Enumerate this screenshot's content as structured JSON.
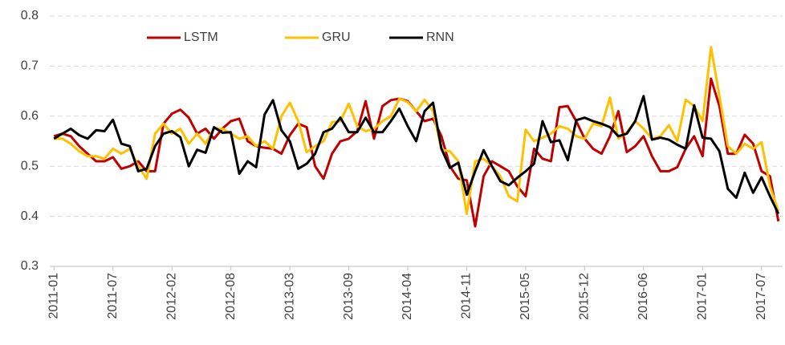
{
  "chart_data": {
    "type": "line",
    "categories": [
      "2011-01",
      null,
      null,
      null,
      null,
      null,
      null,
      "2011-07",
      null,
      null,
      null,
      null,
      null,
      null,
      "2012-02",
      null,
      null,
      null,
      null,
      null,
      null,
      "2012-08",
      null,
      null,
      null,
      null,
      null,
      null,
      "2013-03",
      null,
      null,
      null,
      null,
      null,
      null,
      "2013-09",
      null,
      null,
      null,
      null,
      null,
      null,
      "2014-04",
      null,
      null,
      null,
      null,
      null,
      null,
      "2014-11",
      null,
      null,
      null,
      null,
      null,
      null,
      "2015-05",
      null,
      null,
      null,
      null,
      null,
      null,
      "2015-12",
      null,
      null,
      null,
      null,
      null,
      null,
      "2016-06",
      null,
      null,
      null,
      null,
      null,
      null,
      "2017-01",
      null,
      null,
      null,
      null,
      null,
      null,
      "2017-07",
      null,
      null
    ],
    "series": [
      {
        "name": "LSTM",
        "color": "#c00000",
        "values": [
          0.56,
          0.565,
          0.56,
          0.54,
          0.525,
          0.51,
          0.51,
          0.518,
          0.495,
          0.5,
          0.51,
          0.49,
          0.49,
          0.585,
          0.605,
          0.613,
          0.597,
          0.565,
          0.575,
          0.555,
          0.575,
          0.59,
          0.595,
          0.55,
          0.54,
          0.537,
          0.535,
          0.525,
          0.562,
          0.585,
          0.578,
          0.5,
          0.475,
          0.525,
          0.55,
          0.555,
          0.57,
          0.63,
          0.555,
          0.62,
          0.632,
          0.635,
          0.63,
          0.61,
          0.59,
          0.595,
          0.56,
          0.5,
          0.475,
          0.472,
          0.38,
          0.48,
          0.51,
          0.5,
          0.49,
          0.46,
          0.44,
          0.535,
          0.515,
          0.51,
          0.618,
          0.62,
          0.59,
          0.555,
          0.535,
          0.525,
          0.56,
          0.61,
          0.528,
          0.54,
          0.56,
          0.52,
          0.49,
          0.49,
          0.498,
          0.535,
          0.56,
          0.52,
          0.675,
          0.62,
          0.525,
          0.525,
          0.563,
          0.545,
          0.49,
          0.48,
          0.39
        ]
      },
      {
        "name": "GRU",
        "color": "#ffc000",
        "values": [
          0.555,
          0.555,
          0.545,
          0.53,
          0.52,
          0.52,
          0.515,
          0.535,
          0.525,
          0.535,
          0.5,
          0.475,
          0.565,
          0.585,
          0.565,
          0.575,
          0.545,
          0.565,
          0.545,
          0.575,
          0.575,
          0.565,
          0.555,
          0.56,
          0.54,
          0.55,
          0.535,
          0.6,
          0.627,
          0.59,
          0.528,
          0.54,
          0.55,
          0.588,
          0.59,
          0.625,
          0.58,
          0.57,
          0.575,
          0.59,
          0.6,
          0.635,
          0.628,
          0.61,
          0.633,
          0.61,
          0.533,
          0.53,
          0.51,
          0.405,
          0.51,
          0.515,
          0.5,
          0.48,
          0.44,
          0.43,
          0.573,
          0.55,
          0.557,
          0.565,
          0.58,
          0.575,
          0.56,
          0.555,
          0.585,
          0.58,
          0.637,
          0.555,
          0.568,
          0.59,
          0.575,
          0.555,
          0.56,
          0.582,
          0.55,
          0.633,
          0.62,
          0.59,
          0.738,
          0.64,
          0.54,
          0.525,
          0.545,
          0.535,
          0.548,
          0.46,
          0.41
        ]
      },
      {
        "name": "RNN",
        "color": "#000000",
        "values": [
          0.555,
          0.565,
          0.575,
          0.562,
          0.555,
          0.572,
          0.57,
          0.593,
          0.545,
          0.54,
          0.49,
          0.495,
          0.54,
          0.565,
          0.57,
          0.558,
          0.5,
          0.533,
          0.527,
          0.578,
          0.567,
          0.568,
          0.485,
          0.51,
          0.498,
          0.603,
          0.632,
          0.572,
          0.55,
          0.495,
          0.505,
          0.525,
          0.568,
          0.575,
          0.597,
          0.568,
          0.568,
          0.597,
          0.568,
          0.568,
          0.59,
          0.615,
          0.58,
          0.55,
          0.61,
          0.627,
          0.535,
          0.497,
          0.507,
          0.443,
          0.49,
          0.532,
          0.5,
          0.47,
          0.462,
          0.477,
          0.49,
          0.505,
          0.59,
          0.548,
          0.552,
          0.512,
          0.592,
          0.597,
          0.59,
          0.585,
          0.578,
          0.56,
          0.565,
          0.59,
          0.64,
          0.553,
          0.557,
          0.553,
          0.543,
          0.535,
          0.622,
          0.557,
          0.555,
          0.53,
          0.455,
          0.437,
          0.487,
          0.447,
          0.478,
          0.44,
          0.405
        ]
      }
    ],
    "ylim": [
      0.3,
      0.8
    ],
    "yticks": [
      0.3,
      0.4,
      0.5,
      0.6,
      0.7,
      0.8
    ],
    "grid": true,
    "legend": "top"
  }
}
